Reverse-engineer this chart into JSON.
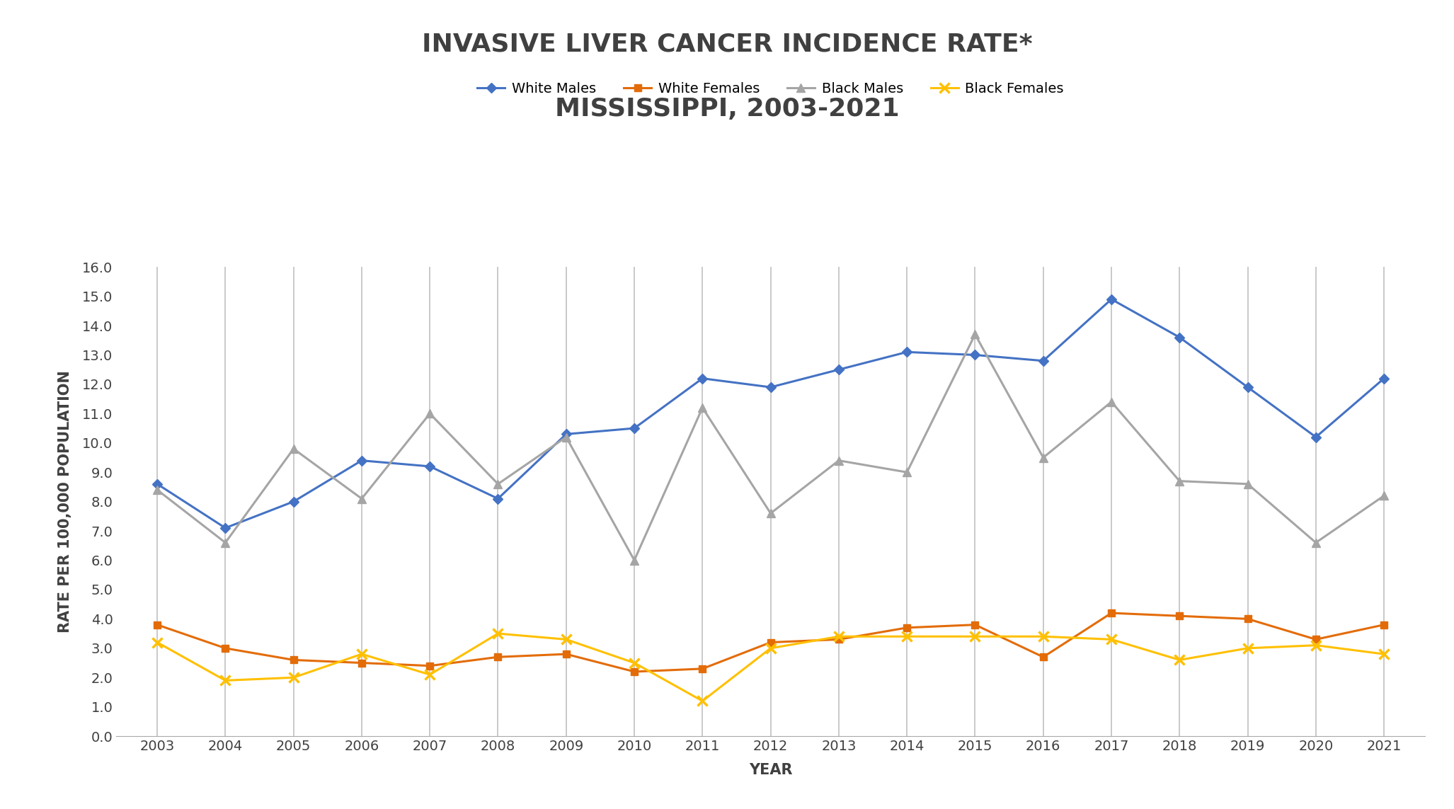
{
  "title_line1": "INVASIVE LIVER CANCER INCIDENCE RATE*",
  "title_line2": "MISSISSIPPI, 2003-2021",
  "xlabel": "YEAR",
  "ylabel": "RATE PER 100,000 POPULATION",
  "years": [
    2003,
    2004,
    2005,
    2006,
    2007,
    2008,
    2009,
    2010,
    2011,
    2012,
    2013,
    2014,
    2015,
    2016,
    2017,
    2018,
    2019,
    2020,
    2021
  ],
  "white_males": [
    8.6,
    7.1,
    8.0,
    9.4,
    9.2,
    8.1,
    10.3,
    10.5,
    12.2,
    11.9,
    12.5,
    13.1,
    13.0,
    12.8,
    14.9,
    13.6,
    11.9,
    10.2,
    12.2
  ],
  "white_females": [
    3.8,
    3.0,
    2.6,
    2.5,
    2.4,
    2.7,
    2.8,
    2.2,
    2.3,
    3.2,
    3.3,
    3.7,
    3.8,
    2.7,
    4.2,
    4.1,
    4.0,
    3.3,
    3.8
  ],
  "black_males": [
    8.4,
    6.6,
    9.8,
    8.1,
    11.0,
    8.6,
    10.2,
    6.0,
    11.2,
    7.6,
    9.4,
    9.0,
    13.7,
    9.5,
    11.4,
    8.7,
    8.6,
    6.6,
    8.2
  ],
  "black_females": [
    3.2,
    1.9,
    2.0,
    2.8,
    2.1,
    3.5,
    3.3,
    2.5,
    1.2,
    3.0,
    3.4,
    3.4,
    3.4,
    3.4,
    3.3,
    2.6,
    3.0,
    3.1,
    2.8
  ],
  "white_males_color": "#4472C4",
  "white_females_color": "#E36C09",
  "black_males_color": "#A5A5A5",
  "black_females_color": "#FFC000",
  "ylim": [
    0.0,
    16.0
  ],
  "ytick_step": 1.0,
  "plot_bg_color": "#FFFFFF",
  "fig_bg_color": "#FFFFFF",
  "grid_color": "#C0C0C0",
  "title_fontsize": 26,
  "axis_label_fontsize": 15,
  "tick_fontsize": 14,
  "legend_fontsize": 14,
  "title_color": "#404040"
}
